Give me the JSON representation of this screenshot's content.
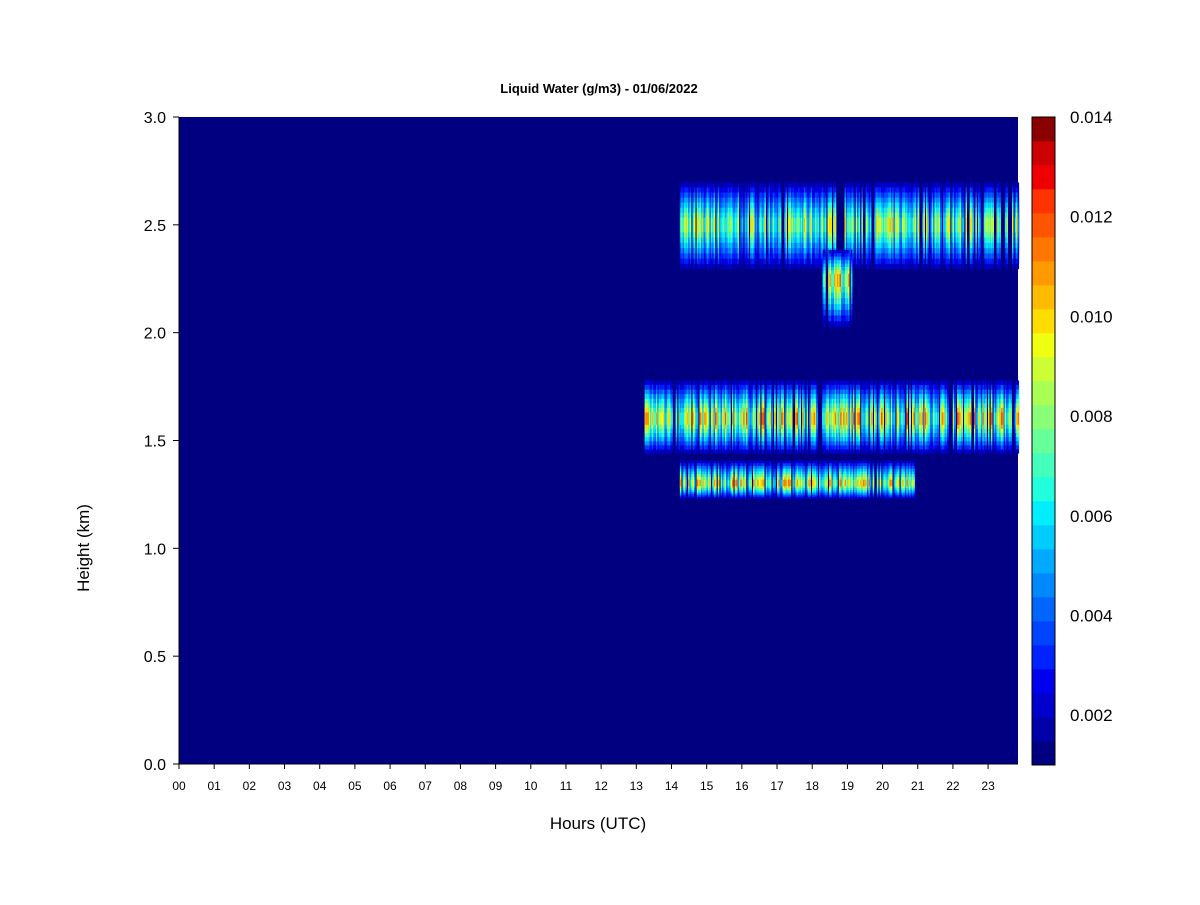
{
  "chart_data": {
    "type": "heatmap",
    "title": "Liquid Water (g/m3) - 01/06/2022",
    "xlabel": "Hours (UTC)",
    "ylabel": "Height (km)",
    "xlim": [
      0,
      23.85
    ],
    "ylim": [
      0,
      3.0
    ],
    "x_ticks": [
      "00",
      "01",
      "02",
      "03",
      "04",
      "05",
      "06",
      "07",
      "08",
      "09",
      "10",
      "11",
      "12",
      "13",
      "14",
      "15",
      "16",
      "17",
      "18",
      "19",
      "20",
      "21",
      "22",
      "23"
    ],
    "y_ticks": [
      "0.0",
      "0.5",
      "1.0",
      "1.5",
      "2.0",
      "2.5",
      "3.0"
    ],
    "colorbar": {
      "label_values": [
        "0.002",
        "0.004",
        "0.006",
        "0.008",
        "0.010",
        "0.012",
        "0.014"
      ],
      "min": 0.001,
      "max": 0.014,
      "levels": 26,
      "colors": [
        "#000080",
        "#0000a8",
        "#0000cc",
        "#0000ee",
        "#0022ff",
        "#0044ff",
        "#0066ff",
        "#0088ff",
        "#00aaff",
        "#00ccff",
        "#00eeff",
        "#22ffdd",
        "#44ffbb",
        "#66ff99",
        "#88ff77",
        "#aaff55",
        "#ccff33",
        "#eeff11",
        "#ffdd00",
        "#ffbb00",
        "#ff9900",
        "#ff7700",
        "#ff5500",
        "#ff3300",
        "#ee0000",
        "#cc0000",
        "#8b0000"
      ]
    },
    "background_value": 0.001,
    "cloud_layers": [
      {
        "name": "upper",
        "x_start": 14.2,
        "x_end": 23.85,
        "base_km": 2.27,
        "top_km": 2.72,
        "core_km": 2.5,
        "peak": 0.0105
      },
      {
        "name": "upper-drop",
        "x_start": 18.3,
        "x_end": 19.1,
        "base_km": 2.0,
        "top_km": 2.4,
        "core_km": 2.25,
        "peak": 0.012
      },
      {
        "name": "middle",
        "x_start": 13.2,
        "x_end": 23.85,
        "base_km": 1.42,
        "top_km": 1.8,
        "core_km": 1.6,
        "peak": 0.0125
      },
      {
        "name": "lower",
        "x_start": 14.2,
        "x_end": 20.9,
        "base_km": 1.22,
        "top_km": 1.42,
        "core_km": 1.3,
        "peak": 0.012
      }
    ]
  }
}
